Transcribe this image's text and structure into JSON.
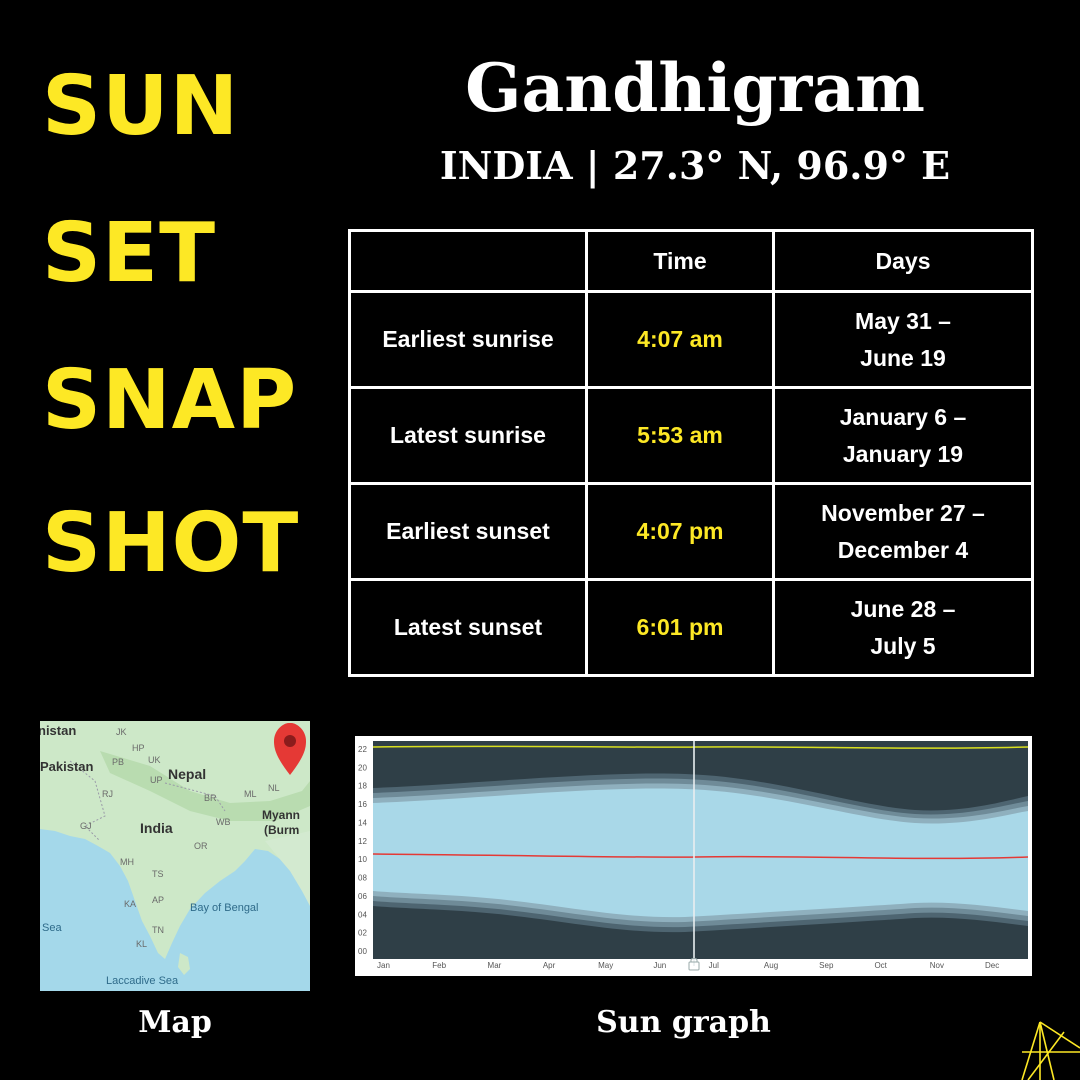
{
  "side_words": [
    "SUN",
    "SET",
    "SNAP",
    "SHOT"
  ],
  "header": {
    "title": "Gandhigram",
    "subtitle": "INDIA | 27.3° N, 96.9° E"
  },
  "table": {
    "columns": [
      "",
      "Time",
      "Days"
    ],
    "rows": [
      {
        "label": "Earliest sunrise",
        "time": "4:07 am",
        "days_line1": "May 31 –",
        "days_line2": "June 19"
      },
      {
        "label": "Latest sunrise",
        "time": "5:53 am",
        "days_line1": "January 6 –",
        "days_line2": "January 19"
      },
      {
        "label": "Earliest sunset",
        "time": "4:07 pm",
        "days_line1": "November 27 –",
        "days_line2": "December 4"
      },
      {
        "label": "Latest sunset",
        "time": "6:01 pm",
        "days_line1": "June 28 –",
        "days_line2": "July 5"
      }
    ]
  },
  "map": {
    "caption": "Map",
    "labels": {
      "country_top": "nistan",
      "pakistan": "Pakistan",
      "nepal": "Nepal",
      "india": "India",
      "myanmar": "Myann",
      "myanmar2": "(Burm",
      "bay": "Bay of Bengal",
      "sea": "Sea",
      "laccadive": "Laccadive Sea",
      "states": [
        "JK",
        "PB",
        "UK",
        "UP",
        "RJ",
        "GJ",
        "MH",
        "TS",
        "KA",
        "AP",
        "TN",
        "KL",
        "OR",
        "BR",
        "WB",
        "NL",
        "ML",
        "HP"
      ]
    },
    "pin_color": "#e53935"
  },
  "sun_graph": {
    "caption": "Sun graph",
    "y_ticks": [
      "22",
      "20",
      "18",
      "16",
      "14",
      "12",
      "10",
      "08",
      "06",
      "04",
      "02",
      "00"
    ],
    "months": [
      "Jan",
      "Feb",
      "Mar",
      "Apr",
      "May",
      "Jun",
      "Jul",
      "Aug",
      "Sep",
      "Oct",
      "Nov",
      "Dec"
    ],
    "colors": {
      "night": "#2f3f47",
      "day": "#a9d8e8",
      "twilight": "#6f8b98",
      "noon_line": "#e53935",
      "midnight_line": "#d9e020"
    }
  },
  "accent": "#fde825"
}
